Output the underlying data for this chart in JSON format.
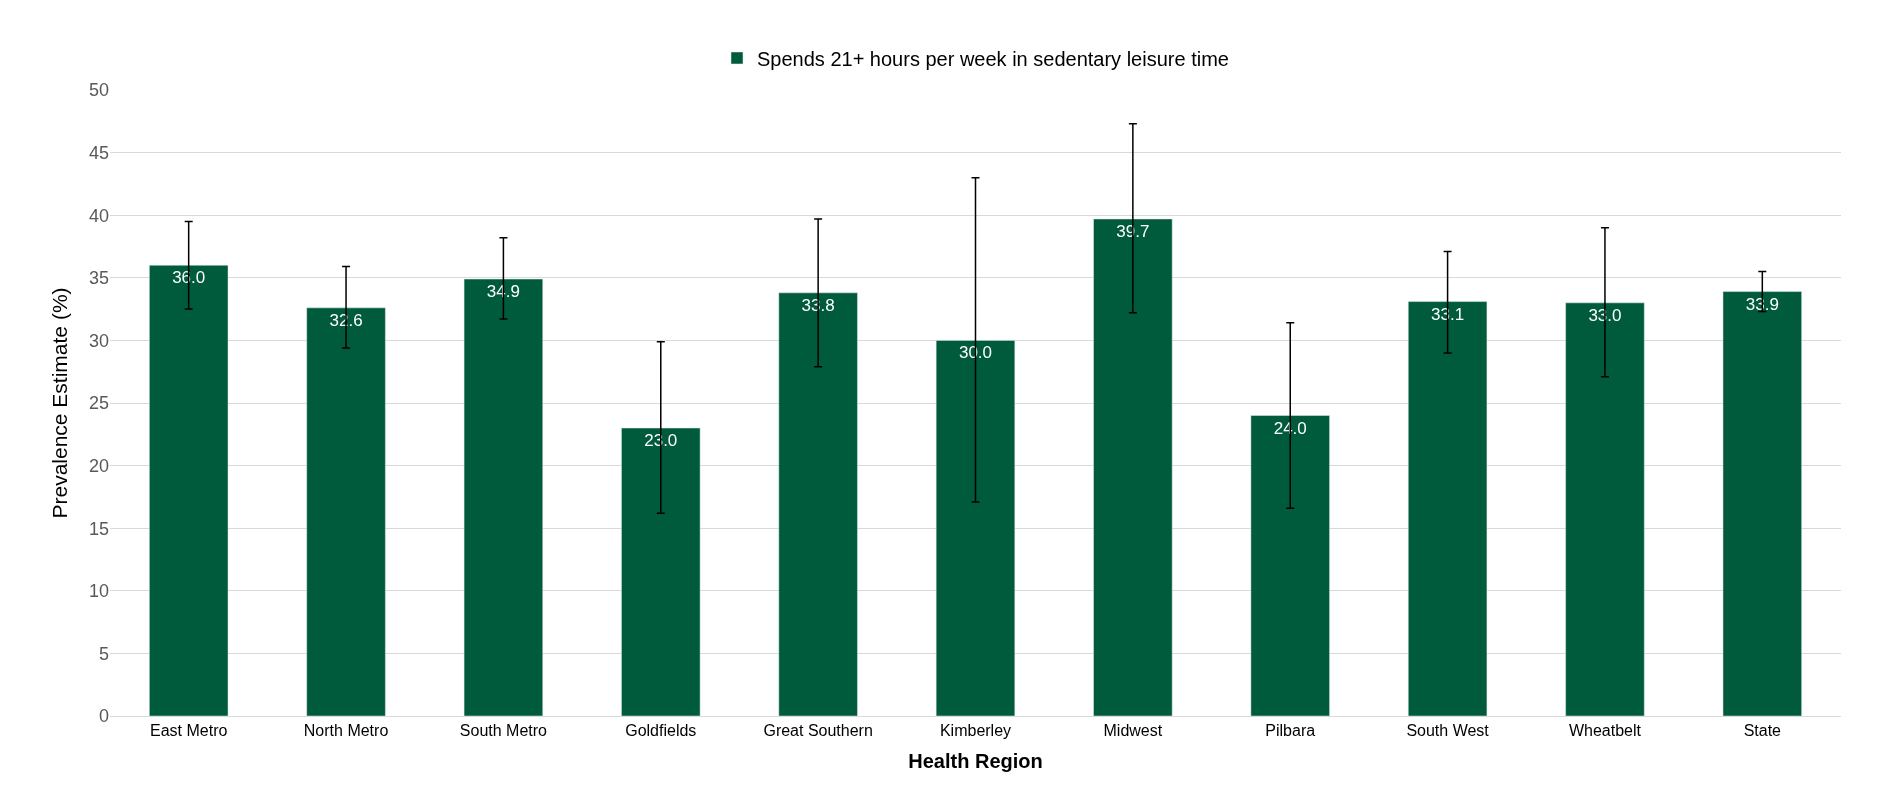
{
  "chart_data": {
    "type": "bar",
    "xlabel": "Health Region",
    "ylabel": "Prevalence Estimate (%)",
    "categories": [
      "East Metro",
      "North Metro",
      "South Metro",
      "Goldfields",
      "Great Southern",
      "Kimberley",
      "Midwest",
      "Pilbara",
      "South West",
      "Wheatbelt",
      "State"
    ],
    "series": [
      {
        "name": "Spends 21+ hours per week in sedentary leisure time",
        "color": "#005a3c",
        "values": [
          36.0,
          32.6,
          34.9,
          23.0,
          33.8,
          30.0,
          39.7,
          24.0,
          33.1,
          33.0,
          33.9
        ],
        "value_labels": [
          "36.0",
          "32.6",
          "34.9",
          "23.0",
          "33.8",
          "30.0",
          "39.7",
          "24.0",
          "33.1",
          "33.0",
          "33.9"
        ],
        "errors": [
          [
            32.5,
            39.5
          ],
          [
            29.4,
            35.9
          ],
          [
            31.7,
            38.2
          ],
          [
            16.2,
            29.9
          ],
          [
            27.9,
            39.7
          ],
          [
            17.1,
            43.0
          ],
          [
            32.2,
            47.3
          ],
          [
            16.6,
            31.4
          ],
          [
            29.0,
            37.1
          ],
          [
            27.1,
            39.0
          ],
          [
            32.3,
            35.5
          ]
        ]
      }
    ],
    "ylim": [
      0,
      50
    ],
    "yticks": [
      0,
      5,
      10,
      15,
      20,
      25,
      30,
      35,
      40,
      45,
      50
    ],
    "grid": "y",
    "legend": "top"
  }
}
